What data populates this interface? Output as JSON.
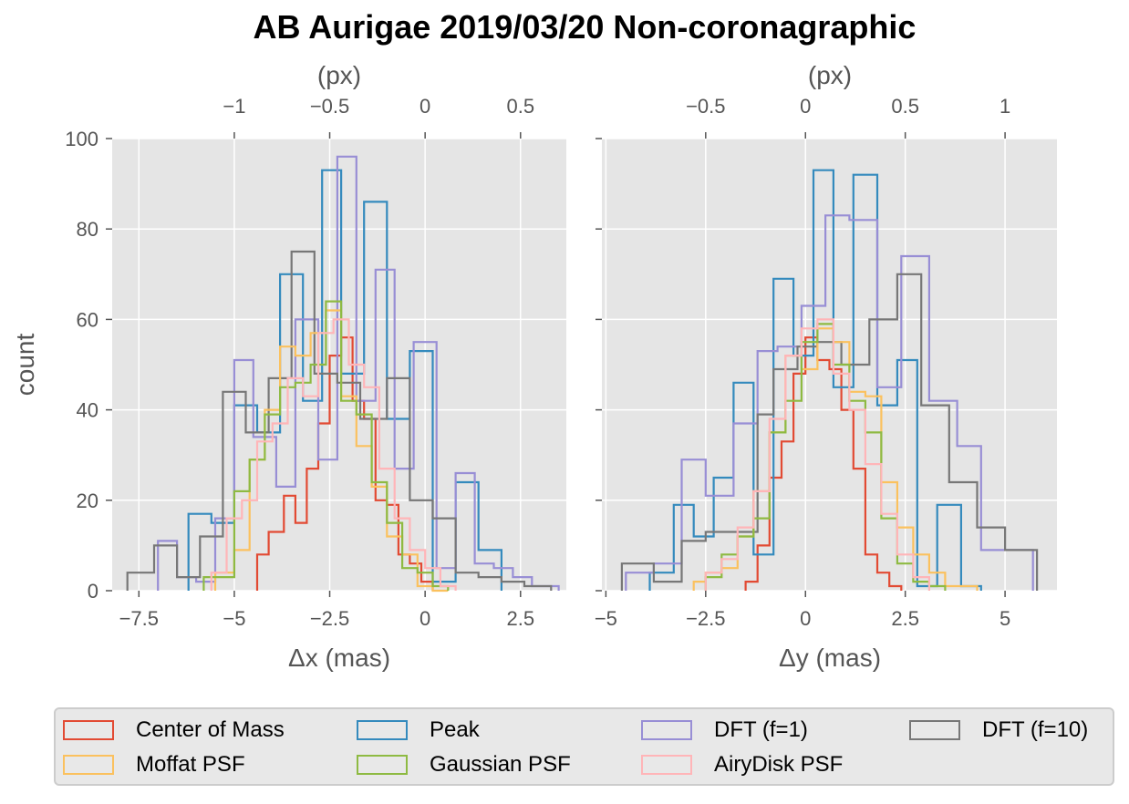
{
  "chart_data": {
    "type": "histogram",
    "title": "AB Aurigae 2019/03/20 Non-coronagraphic",
    "ylabel": "count",
    "yticks": [
      0,
      20,
      40,
      60,
      80,
      100
    ],
    "grid": true,
    "legend_position": "bottom",
    "legend": [
      {
        "name": "Center of Mass",
        "color": "#E24A33"
      },
      {
        "name": "Moffat PSF",
        "color": "#FBC15E"
      },
      {
        "name": "Peak",
        "color": "#348ABD"
      },
      {
        "name": "Gaussian PSF",
        "color": "#8EBA42"
      },
      {
        "name": "DFT (f=1)",
        "color": "#988ED5"
      },
      {
        "name": "AiryDisk PSF",
        "color": "#FFB5B8"
      },
      {
        "name": "DFT (f=10)",
        "color": "#777777"
      }
    ],
    "panels": [
      {
        "xlabel": "Δx (mas)",
        "top_xlabel": "(px)",
        "xlim": [
          -8.2,
          3.7
        ],
        "ylim": [
          0,
          100
        ],
        "xticks": [
          -7.5,
          -5,
          -2.5,
          0,
          2.5
        ],
        "xtick_labels": [
          "−7.5",
          "−5",
          "−2.5",
          "0",
          "2.5"
        ],
        "top_xticks": [
          -1,
          -0.5,
          0,
          0.5
        ],
        "top_xtick_labels": [
          "−1",
          "−0.5",
          "0",
          "0.5"
        ],
        "px_scale_mas_per_px": 5.0,
        "series": [
          {
            "name": "Center of Mass",
            "color": "#E24A33",
            "edges": [
              -4.4,
              -4.1,
              -3.7,
              -3.4,
              -3.1,
              -2.8,
              -2.5,
              -2.2,
              -1.9,
              -1.6,
              -1.3,
              -1.0,
              -0.7,
              -0.4,
              -0.1,
              0.2
            ],
            "counts": [
              8,
              13,
              21,
              15,
              27,
              37,
              52,
              56,
              42,
              38,
              20,
              19,
              8,
              6,
              2
            ]
          },
          {
            "name": "Peak",
            "color": "#348ABD",
            "edges": [
              -6.2,
              -5.6,
              -5.0,
              -4.4,
              -3.8,
              -3.2,
              -2.7,
              -2.2,
              -1.6,
              -1.0,
              -0.4,
              0.2,
              0.8,
              1.4,
              2.0
            ],
            "counts": [
              17,
              15,
              41,
              35,
              70,
              42,
              93,
              48,
              86,
              38,
              53,
              2,
              24,
              9
            ]
          },
          {
            "name": "DFT (f=1)",
            "color": "#988ED5",
            "edges": [
              -7.0,
              -6.5,
              -6.0,
              -5.5,
              -5.0,
              -4.5,
              -3.9,
              -3.4,
              -2.8,
              -2.3,
              -1.8,
              -1.3,
              -0.8,
              -0.3,
              0.3,
              0.8,
              1.3,
              1.8,
              2.3,
              2.8,
              3.5
            ],
            "counts": [
              11,
              3,
              2,
              16,
              51,
              34,
              23,
              60,
              29,
              96,
              42,
              71,
              27,
              55,
              5,
              26,
              6,
              5,
              3,
              1
            ]
          },
          {
            "name": "DFT (f=10)",
            "color": "#777777",
            "edges": [
              -7.8,
              -7.1,
              -6.5,
              -5.9,
              -5.3,
              -4.7,
              -4.1,
              -3.5,
              -2.9,
              -2.3,
              -1.7,
              -1.0,
              -0.4,
              0.2,
              0.8,
              1.4,
              2.0,
              2.6,
              3.3
            ],
            "counts": [
              4,
              10,
              3,
              12,
              44,
              35,
              47,
              75,
              48,
              46,
              38,
              47,
              20,
              16,
              4,
              3,
              2,
              1
            ]
          },
          {
            "name": "Moffat PSF",
            "color": "#FBC15E",
            "edges": [
              -5.5,
              -5.0,
              -4.6,
              -4.2,
              -3.8,
              -3.4,
              -3.0,
              -2.6,
              -2.2,
              -1.8,
              -1.4,
              -1.0,
              -0.6,
              -0.2,
              0.2,
              0.6
            ],
            "counts": [
              4,
              9,
              29,
              40,
              54,
              52,
              57,
              62,
              43,
              32,
              23,
              12,
              8,
              1,
              0
            ]
          },
          {
            "name": "Gaussian PSF",
            "color": "#8EBA42",
            "edges": [
              -5.8,
              -5.0,
              -4.6,
              -4.2,
              -3.8,
              -3.4,
              -3.0,
              -2.6,
              -2.2,
              -1.8,
              -1.4,
              -1.0,
              -0.6,
              -0.2,
              0.2,
              0.6
            ],
            "counts": [
              3,
              22,
              29,
              39,
              45,
              46,
              50,
              64,
              42,
              39,
              24,
              15,
              5,
              4,
              1
            ]
          },
          {
            "name": "AiryDisk PSF",
            "color": "#FFB5B8",
            "edges": [
              -5.6,
              -5.2,
              -4.8,
              -4.4,
              -4.0,
              -3.6,
              -3.2,
              -2.8,
              -2.4,
              -2.0,
              -1.6,
              -1.2,
              -0.8,
              -0.4,
              0.0,
              0.4,
              0.8
            ],
            "counts": [
              4,
              16,
              20,
              33,
              37,
              47,
              43,
              57,
              60,
              50,
              45,
              27,
              16,
              9,
              5,
              1
            ]
          }
        ]
      },
      {
        "xlabel": "Δy (mas)",
        "top_xlabel": "(px)",
        "xlim": [
          -5.1,
          6.3
        ],
        "ylim": [
          0,
          100
        ],
        "xticks": [
          -5,
          -2.5,
          0,
          2.5,
          5
        ],
        "xtick_labels": [
          "−5",
          "−2.5",
          "0",
          "2.5",
          "5"
        ],
        "top_xticks": [
          -0.5,
          0,
          0.5,
          1
        ],
        "top_xtick_labels": [
          "−0.5",
          "0",
          "0.5",
          "1"
        ],
        "px_scale_mas_per_px": 5.0,
        "series": [
          {
            "name": "Center of Mass",
            "color": "#E24A33",
            "edges": [
              -1.5,
              -1.2,
              -0.9,
              -0.6,
              -0.3,
              0.0,
              0.3,
              0.6,
              0.9,
              1.2,
              1.5,
              1.8,
              2.1,
              2.4
            ],
            "counts": [
              2,
              10,
              25,
              33,
              48,
              56,
              51,
              49,
              40,
              27,
              8,
              4,
              1
            ]
          },
          {
            "name": "Peak",
            "color": "#348ABD",
            "edges": [
              -3.9,
              -3.3,
              -2.8,
              -2.3,
              -1.8,
              -1.3,
              -0.8,
              -0.3,
              0.2,
              0.7,
              1.2,
              1.8,
              2.3,
              2.8,
              3.3,
              3.9,
              4.4
            ],
            "counts": [
              4,
              19,
              12,
              25,
              46,
              8,
              69,
              52,
              93,
              45,
              92,
              41,
              51,
              1,
              19,
              1
            ]
          },
          {
            "name": "DFT (f=1)",
            "color": "#988ED5",
            "edges": [
              -4.5,
              -3.8,
              -3.1,
              -2.5,
              -1.8,
              -1.2,
              -0.7,
              -0.1,
              0.5,
              1.1,
              1.8,
              2.4,
              3.1,
              3.8,
              4.4,
              5.1,
              5.7
            ],
            "counts": [
              4,
              6,
              29,
              21,
              37,
              53,
              54,
              63,
              83,
              82,
              45,
              74,
              42,
              32,
              9,
              9
            ]
          },
          {
            "name": "DFT (f=10)",
            "color": "#777777",
            "edges": [
              -4.6,
              -3.8,
              -3.1,
              -2.5,
              -1.8,
              -1.2,
              -0.8,
              -0.2,
              0.3,
              0.9,
              1.6,
              2.3,
              2.9,
              3.6,
              4.3,
              5.0,
              5.8
            ],
            "counts": [
              6,
              2,
              11,
              13,
              13,
              39,
              49,
              54,
              55,
              50,
              60,
              70,
              41,
              24,
              14,
              9
            ]
          },
          {
            "name": "Moffat PSF",
            "color": "#FBC15E",
            "edges": [
              -2.8,
              -2.5,
              -2.1,
              -1.7,
              -1.3,
              -0.9,
              -0.5,
              -0.1,
              0.3,
              0.7,
              1.1,
              1.5,
              1.9,
              2.3,
              2.7,
              3.1,
              3.5,
              3.9,
              4.3
            ],
            "counts": [
              2,
              4,
              5,
              12,
              22,
              35,
              52,
              49,
              58,
              55,
              44,
              43,
              24,
              14,
              8,
              4,
              1,
              1
            ]
          },
          {
            "name": "Gaussian PSF",
            "color": "#8EBA42",
            "edges": [
              -2.5,
              -2.1,
              -1.7,
              -1.3,
              -0.9,
              -0.5,
              -0.1,
              0.3,
              0.7,
              1.1,
              1.5,
              1.9,
              2.3,
              2.7,
              3.1,
              3.5
            ],
            "counts": [
              3,
              8,
              12,
              16,
              35,
              42,
              55,
              59,
              50,
              42,
              35,
              16,
              6,
              2,
              1
            ]
          },
          {
            "name": "AiryDisk PSF",
            "color": "#FFB5B8",
            "edges": [
              -2.5,
              -2.1,
              -1.7,
              -1.3,
              -0.9,
              -0.5,
              -0.1,
              0.3,
              0.7,
              1.1,
              1.5,
              1.9,
              2.3,
              2.7,
              3.1
            ],
            "counts": [
              4,
              7,
              14,
              22,
              38,
              52,
              58,
              60,
              48,
              40,
              28,
              17,
              8,
              3
            ]
          }
        ]
      }
    ]
  }
}
